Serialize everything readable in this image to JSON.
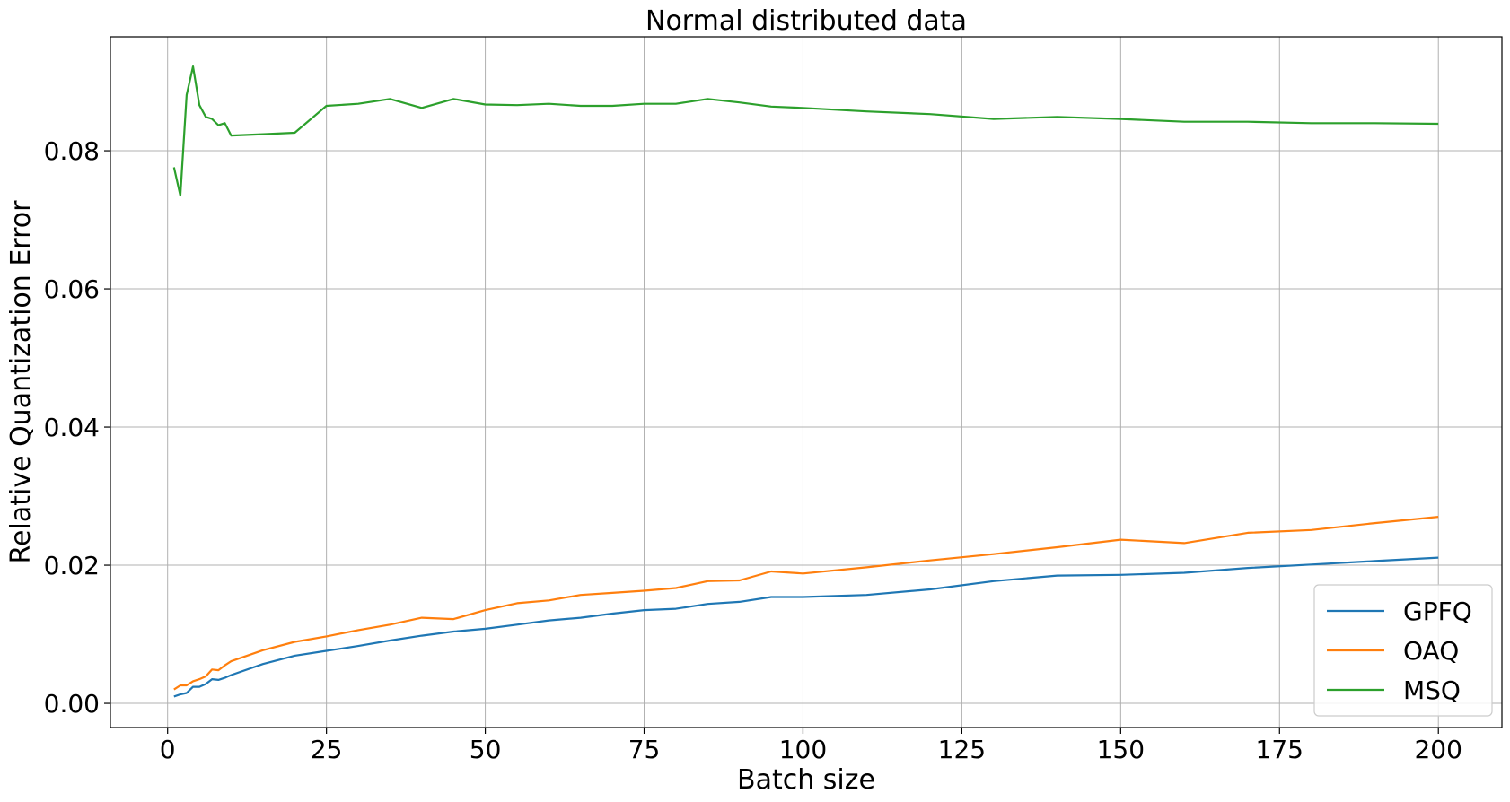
{
  "chart_data": {
    "type": "line",
    "title": "Normal distributed data",
    "xlabel": "Batch size",
    "ylabel": "Relative Quantization Error",
    "xlim": [
      -9,
      210
    ],
    "ylim": [
      -0.0035,
      0.0965
    ],
    "xticks": [
      0,
      25,
      50,
      75,
      100,
      125,
      150,
      175,
      200
    ],
    "xtick_labels": [
      "0",
      "25",
      "50",
      "75",
      "100",
      "125",
      "150",
      "175",
      "200"
    ],
    "yticks": [
      0.0,
      0.02,
      0.04,
      0.06,
      0.08
    ],
    "ytick_labels": [
      "0.00",
      "0.02",
      "0.04",
      "0.06",
      "0.08"
    ],
    "grid": true,
    "legend_position": "lower-right",
    "x": [
      1,
      2,
      3,
      4,
      5,
      6,
      7,
      8,
      9,
      10,
      15,
      20,
      25,
      30,
      35,
      40,
      45,
      50,
      55,
      60,
      65,
      70,
      75,
      80,
      85,
      90,
      95,
      100,
      110,
      120,
      130,
      140,
      150,
      160,
      170,
      180,
      190,
      200
    ],
    "series": [
      {
        "name": "GPFQ",
        "color": "#1f77b4",
        "values": [
          0.001,
          0.0013,
          0.0015,
          0.0024,
          0.0024,
          0.0028,
          0.0035,
          0.0034,
          0.0037,
          0.0041,
          0.0057,
          0.0069,
          0.0076,
          0.0083,
          0.0091,
          0.0098,
          0.0104,
          0.0108,
          0.0114,
          0.012,
          0.0124,
          0.013,
          0.0135,
          0.0137,
          0.0144,
          0.0147,
          0.0154,
          0.0154,
          0.0157,
          0.0165,
          0.0177,
          0.0185,
          0.0186,
          0.0189,
          0.0196,
          0.0201,
          0.0206,
          0.0211
        ]
      },
      {
        "name": "OAQ",
        "color": "#ff7f0e",
        "values": [
          0.002,
          0.0026,
          0.0026,
          0.0032,
          0.0035,
          0.0039,
          0.0049,
          0.0048,
          0.0055,
          0.0061,
          0.0077,
          0.0089,
          0.0097,
          0.0106,
          0.0114,
          0.0124,
          0.0122,
          0.0135,
          0.0145,
          0.0149,
          0.0157,
          0.016,
          0.0163,
          0.0167,
          0.0177,
          0.0178,
          0.0191,
          0.0188,
          0.0197,
          0.0207,
          0.0216,
          0.0226,
          0.0237,
          0.0232,
          0.0247,
          0.0251,
          0.0261,
          0.027
        ]
      },
      {
        "name": "MSQ",
        "color": "#2ca02c",
        "values": [
          0.0776,
          0.0735,
          0.0881,
          0.0922,
          0.0866,
          0.0849,
          0.0846,
          0.0837,
          0.084,
          0.0822,
          0.0824,
          0.0826,
          0.0865,
          0.0868,
          0.0875,
          0.0862,
          0.0875,
          0.0867,
          0.0866,
          0.0868,
          0.0865,
          0.0865,
          0.0868,
          0.0868,
          0.0875,
          0.087,
          0.0864,
          0.0862,
          0.0857,
          0.0853,
          0.0846,
          0.0849,
          0.0846,
          0.0842,
          0.0842,
          0.084,
          0.084,
          0.0839
        ]
      }
    ]
  }
}
